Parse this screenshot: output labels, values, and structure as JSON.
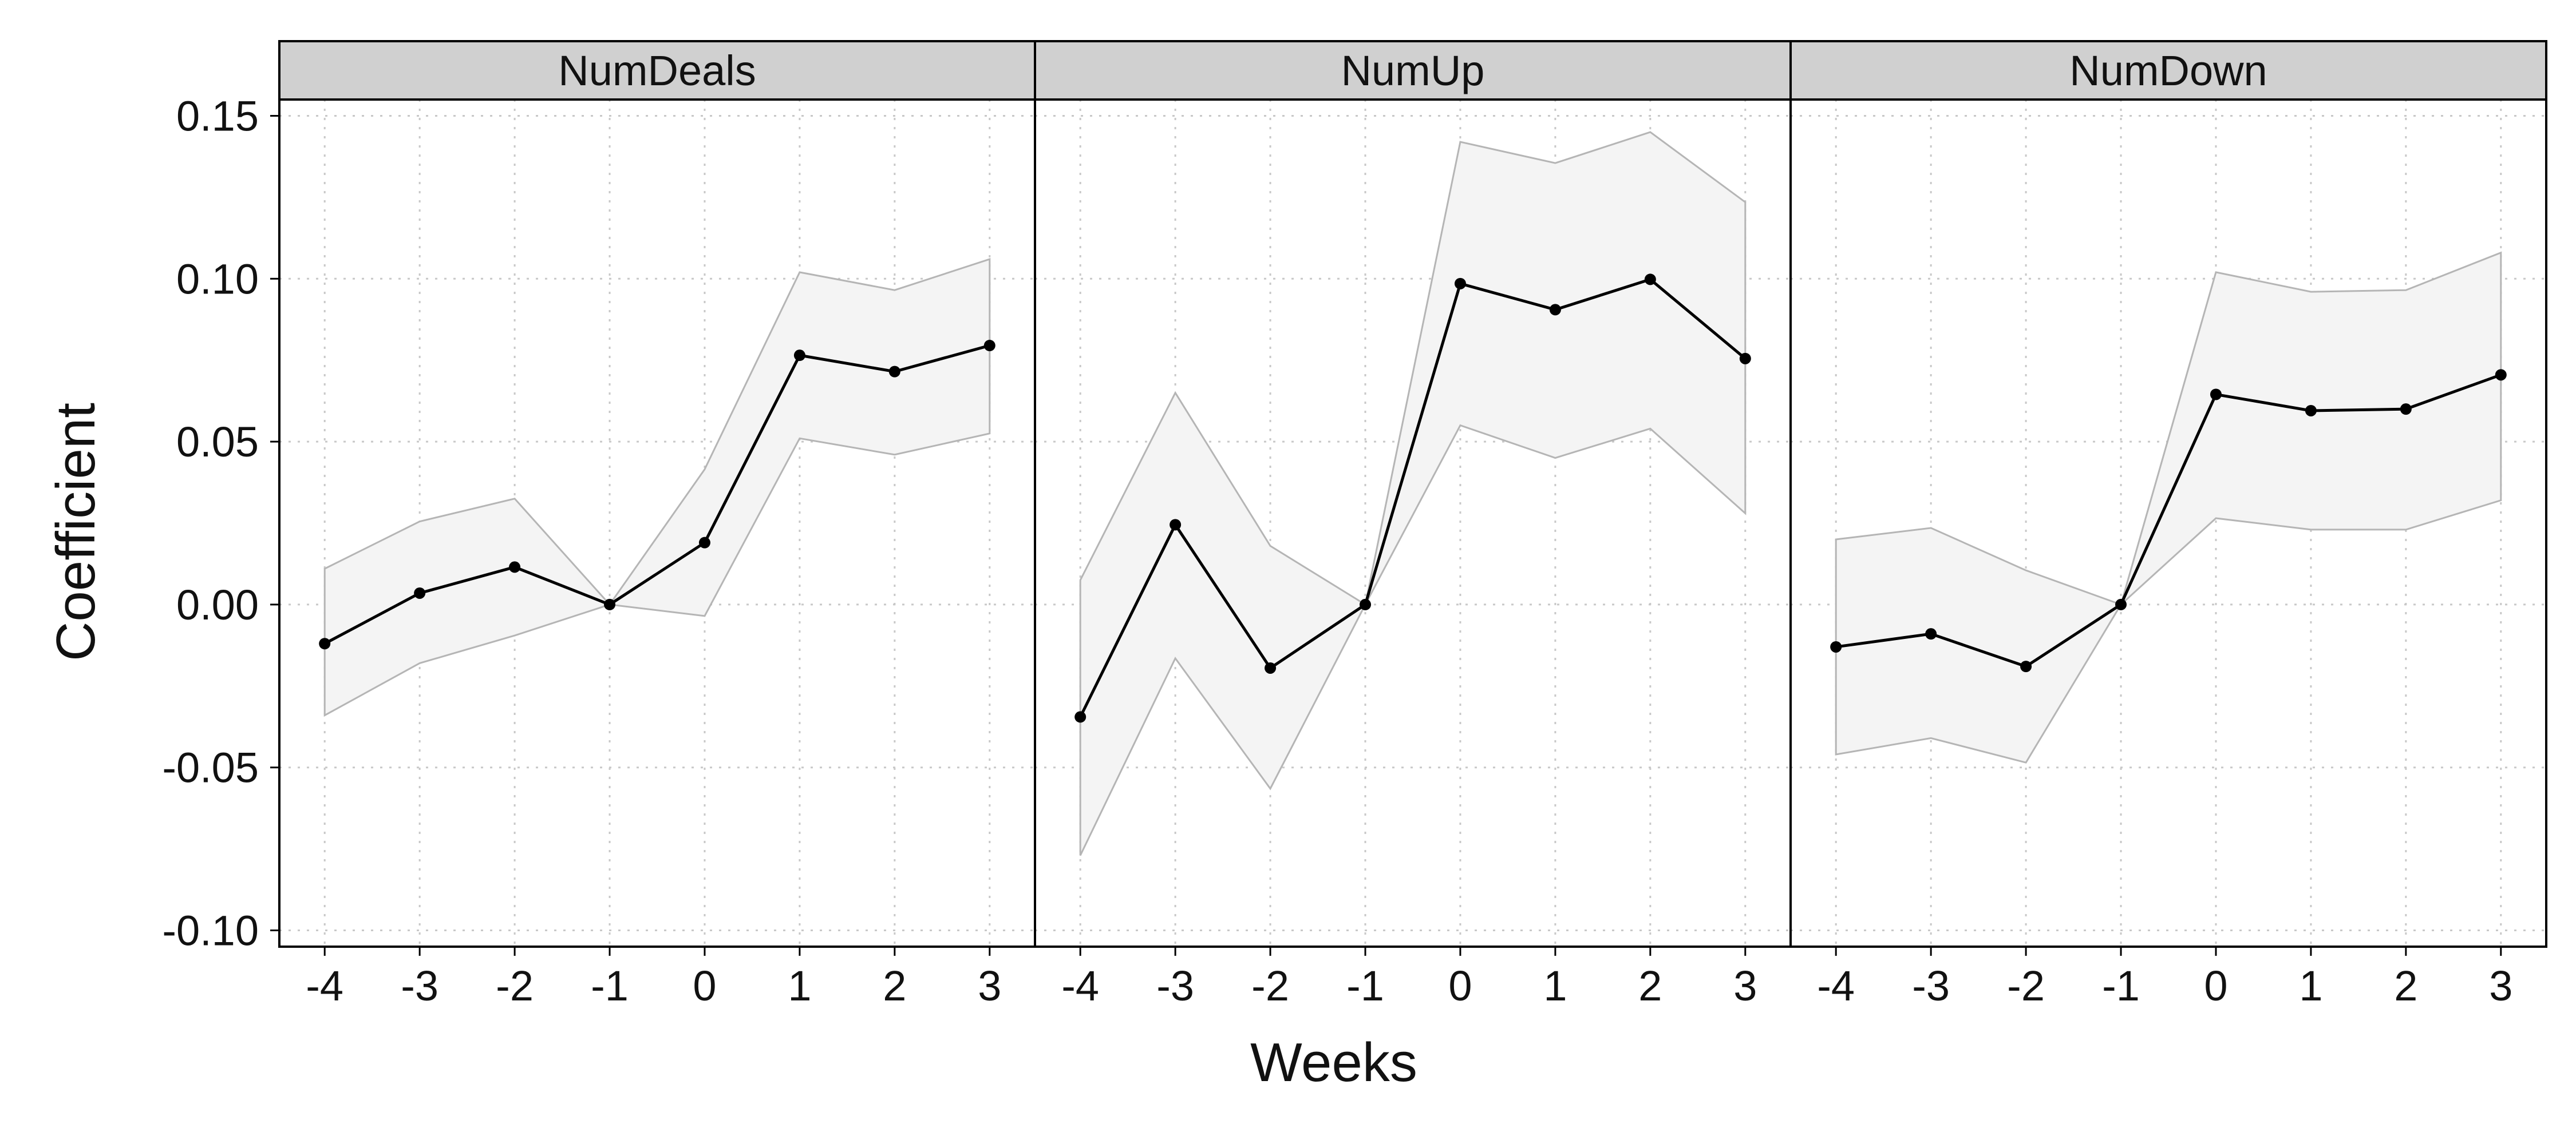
{
  "chart_data": {
    "type": "line",
    "xlabel": "Weeks",
    "ylabel": "Coefficient",
    "x": [
      -4,
      -3,
      -2,
      -1,
      0,
      1,
      2,
      3
    ],
    "x_tick_labels": [
      "-4",
      "-3",
      "-2",
      "-1",
      "0",
      "1",
      "2",
      "3"
    ],
    "ylim": [
      -0.105,
      0.155
    ],
    "y_ticks": [
      -0.1,
      -0.05,
      0.0,
      0.05,
      0.1,
      0.15
    ],
    "y_tick_labels": [
      "-0.10",
      "-0.05",
      "0.00",
      "0.05",
      "0.10",
      "0.15"
    ],
    "grid": true,
    "colors": {
      "line": "#000000",
      "band_fill": "#f4f4f4",
      "band_edge": "#b5b5b5",
      "strip": "#d0d0d0"
    },
    "panels": [
      {
        "title": "NumDeals",
        "coef": [
          -0.012,
          0.0035,
          0.0115,
          0.0,
          0.019,
          0.0765,
          0.0715,
          0.0795
        ],
        "lower": [
          -0.034,
          -0.018,
          -0.0095,
          0.0,
          -0.0035,
          0.051,
          0.046,
          0.0525
        ],
        "upper": [
          0.011,
          0.0255,
          0.0325,
          0.0,
          0.0415,
          0.102,
          0.0965,
          0.106
        ]
      },
      {
        "title": "NumUp",
        "coef": [
          -0.0345,
          0.0245,
          -0.0195,
          0.0,
          0.0985,
          0.0905,
          0.0998,
          0.0755
        ],
        "lower": [
          -0.077,
          -0.0165,
          -0.0565,
          0.0,
          0.055,
          0.045,
          0.054,
          0.028
        ],
        "upper": [
          0.0075,
          0.065,
          0.018,
          0.0,
          0.142,
          0.1355,
          0.145,
          0.1235
        ]
      },
      {
        "title": "NumDown",
        "coef": [
          -0.013,
          -0.009,
          -0.019,
          0.0,
          0.0645,
          0.0595,
          0.06,
          0.0705
        ],
        "lower": [
          -0.046,
          -0.041,
          -0.0485,
          0.0,
          0.0265,
          0.023,
          0.023,
          0.032
        ],
        "upper": [
          0.02,
          0.0235,
          0.0105,
          0.0,
          0.102,
          0.096,
          0.0965,
          0.108
        ]
      }
    ]
  }
}
